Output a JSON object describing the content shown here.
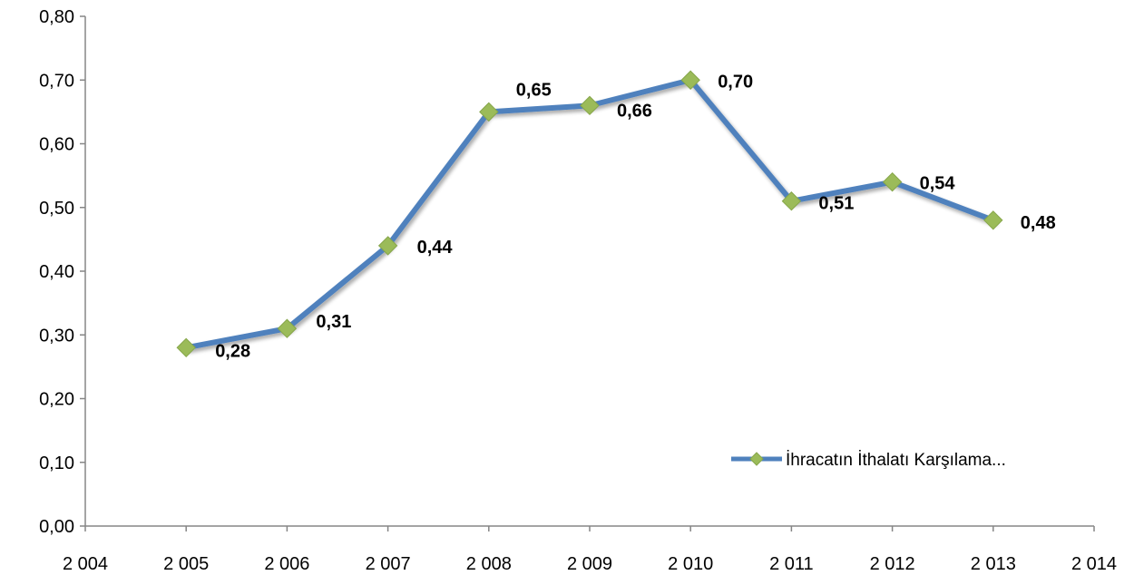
{
  "chart_data": {
    "type": "line",
    "title": "",
    "xlabel": "",
    "ylabel": "",
    "x": [
      2005,
      2006,
      2007,
      2008,
      2009,
      2010,
      2011,
      2012,
      2013
    ],
    "series": [
      {
        "name": "İhracatın İthalatı Karşılama...",
        "values": [
          0.28,
          0.31,
          0.44,
          0.65,
          0.66,
          0.7,
          0.51,
          0.54,
          0.48
        ],
        "data_labels": [
          "0,28",
          "0,31",
          "0,44",
          "0,65",
          "0,66",
          "0,70",
          "0,51",
          "0,54",
          "0,48"
        ],
        "line_color": "#4f81bd",
        "marker_color": "#9bbb59",
        "marker": "diamond"
      }
    ],
    "xlim": [
      2004,
      2014
    ],
    "ylim": [
      0,
      0.8
    ],
    "x_ticks": [
      2004,
      2005,
      2006,
      2007,
      2008,
      2009,
      2010,
      2011,
      2012,
      2013,
      2014
    ],
    "x_tick_labels": [
      "2 004",
      "2 005",
      "2 006",
      "2 007",
      "2 008",
      "2 009",
      "2 010",
      "2 011",
      "2 012",
      "2 013",
      "2 014"
    ],
    "y_ticks": [
      0,
      0.1,
      0.2,
      0.3,
      0.4,
      0.5,
      0.6,
      0.7,
      0.8
    ],
    "y_tick_labels": [
      "0,00",
      "0,10",
      "0,20",
      "0,30",
      "0,40",
      "0,50",
      "0,60",
      "0,70",
      "0,80"
    ],
    "grid": false,
    "legend": {
      "placement": "bottom-right-inside",
      "entries": [
        "İhracatın İthalatı Karşılama..."
      ]
    }
  }
}
